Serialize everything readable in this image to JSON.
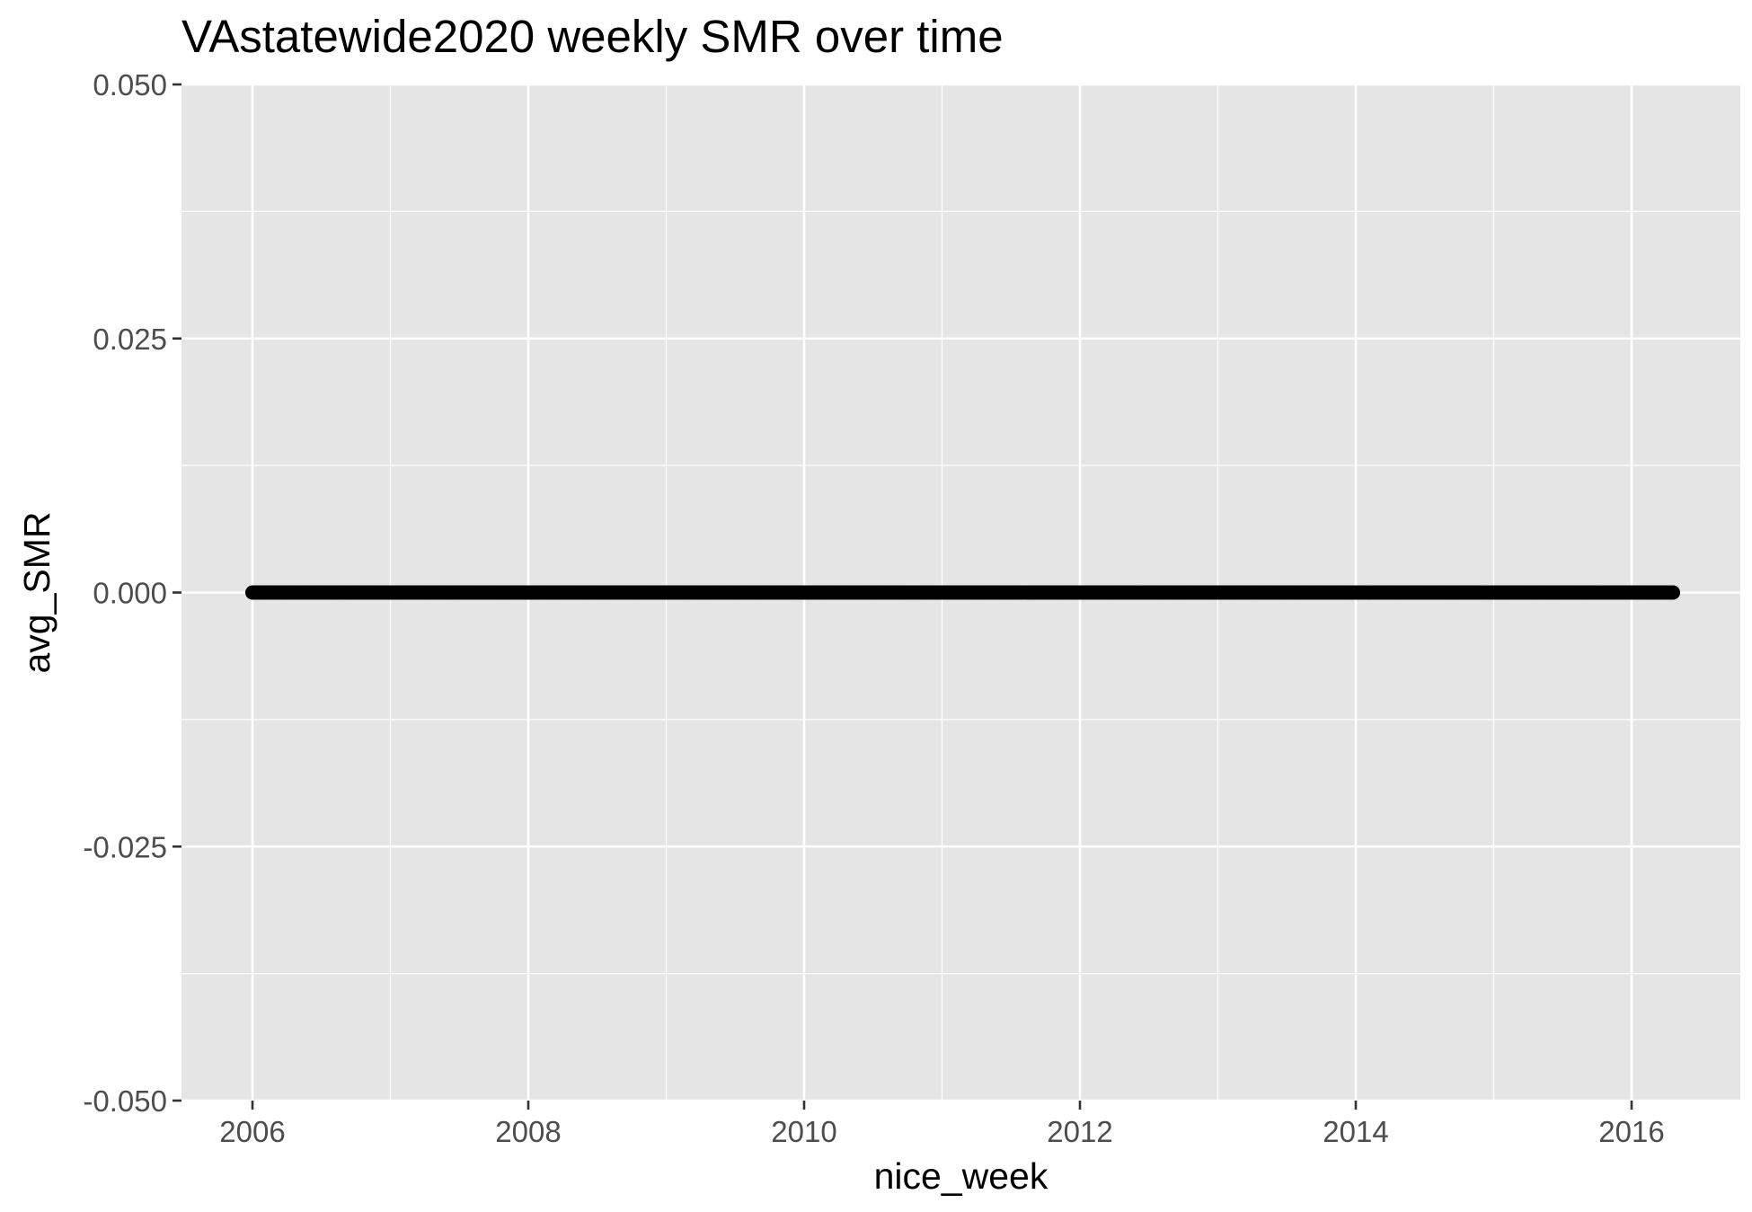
{
  "chart_data": {
    "type": "scatter",
    "title": "VAstatewide2020 weekly SMR over time",
    "xlabel": "nice_week",
    "ylabel": "avg_SMR",
    "xlim": [
      2005.5,
      2016.8
    ],
    "ylim": [
      -0.05,
      0.05
    ],
    "x_ticks": [
      2006,
      2008,
      2010,
      2012,
      2014,
      2016
    ],
    "x_tick_labels": [
      "2006",
      "2008",
      "2010",
      "2012",
      "2014",
      "2016"
    ],
    "y_ticks": [
      -0.05,
      -0.025,
      0.0,
      0.025,
      0.05
    ],
    "y_tick_labels": [
      "-0.050",
      "-0.025",
      "0.000",
      "0.025",
      "0.050"
    ],
    "grid": true,
    "series": [
      {
        "name": "avg_SMR",
        "x_start": 2006.0,
        "x_end": 2016.3,
        "step": "weekly",
        "y_value": 0.0,
        "color": "#000000"
      }
    ],
    "colors": {
      "panel_background": "#e5e5e5",
      "grid": "#ffffff",
      "tick_label": "#4d4d4d",
      "points": "#000000"
    }
  }
}
